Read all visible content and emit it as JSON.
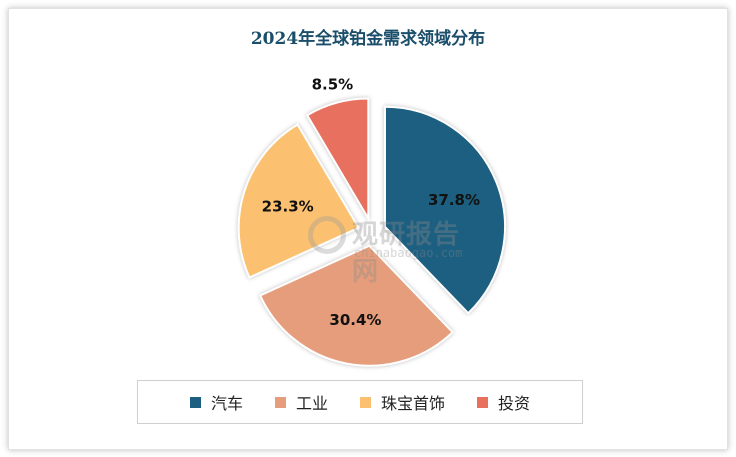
{
  "chart_data": {
    "type": "pie",
    "title": "2024年全球铂金需求领域分布",
    "categories": [
      "汽车",
      "工业",
      "珠宝首饰",
      "投资"
    ],
    "values": [
      37.8,
      30.4,
      23.3,
      8.5
    ],
    "value_labels": [
      "37.8%",
      "30.4%",
      "23.3%",
      "8.5%"
    ],
    "colors": [
      "#1c5f80",
      "#e59d7b",
      "#fcc170",
      "#e8705f"
    ],
    "exploded": true,
    "legend_position": "bottom"
  },
  "watermark": {
    "logo_text": "观研报告网",
    "sub_text": "chinabaogao.com"
  }
}
